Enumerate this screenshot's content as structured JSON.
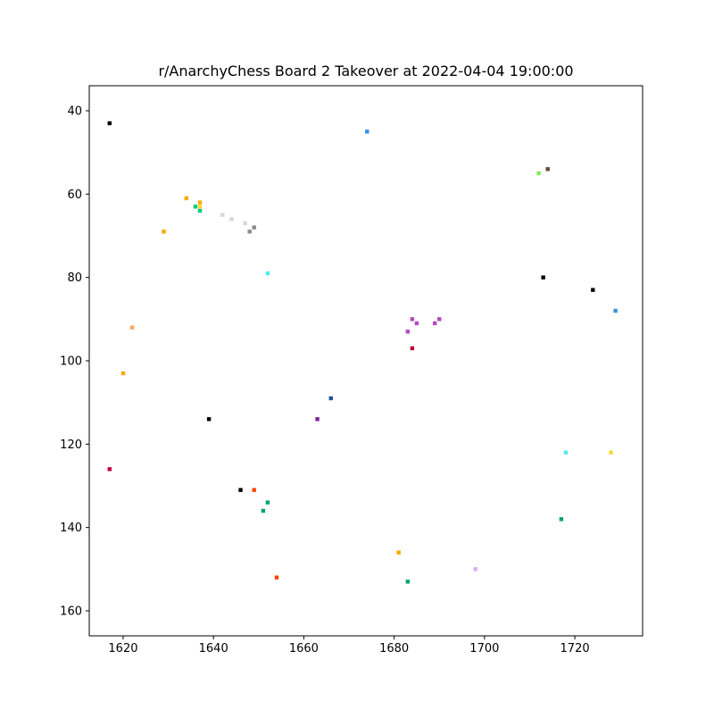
{
  "chart_data": {
    "type": "scatter",
    "title": "r/AnarchyChess Board 2 Takeover at 2022-04-04 19:00:00",
    "xlabel": "",
    "ylabel": "",
    "xlim": [
      1612.5,
      1735
    ],
    "ylim": [
      166,
      34
    ],
    "y_inverted": true,
    "x_ticks": [
      1620,
      1640,
      1660,
      1680,
      1700,
      1720
    ],
    "y_ticks": [
      40,
      60,
      80,
      100,
      120,
      140,
      160
    ],
    "x_tick_labels": [
      "1620",
      "1640",
      "1660",
      "1680",
      "1700",
      "1720"
    ],
    "y_tick_labels": [
      "40",
      "60",
      "80",
      "100",
      "120",
      "140",
      "160"
    ],
    "grid": false,
    "legend": "none",
    "points": [
      {
        "x": 1617,
        "y": 43,
        "color": "#000000"
      },
      {
        "x": 1674,
        "y": 45,
        "color": "#3690ea"
      },
      {
        "x": 1712,
        "y": 55,
        "color": "#7eed56"
      },
      {
        "x": 1714,
        "y": 54,
        "color": "#6d482f"
      },
      {
        "x": 1634,
        "y": 61,
        "color": "#ffa800"
      },
      {
        "x": 1637,
        "y": 62,
        "color": "#ffa800"
      },
      {
        "x": 1636,
        "y": 63,
        "color": "#00cc78"
      },
      {
        "x": 1637,
        "y": 63,
        "color": "#ffd635"
      },
      {
        "x": 1637,
        "y": 64,
        "color": "#00cc78"
      },
      {
        "x": 1642,
        "y": 65,
        "color": "#d4d7d9"
      },
      {
        "x": 1644,
        "y": 66,
        "color": "#d4d7d9"
      },
      {
        "x": 1647,
        "y": 67,
        "color": "#d4d7d9"
      },
      {
        "x": 1649,
        "y": 68,
        "color": "#898d90"
      },
      {
        "x": 1648,
        "y": 69,
        "color": "#898d90"
      },
      {
        "x": 1629,
        "y": 69,
        "color": "#ffa800"
      },
      {
        "x": 1652,
        "y": 79,
        "color": "#51e9f4"
      },
      {
        "x": 1713,
        "y": 80,
        "color": "#000000"
      },
      {
        "x": 1724,
        "y": 83,
        "color": "#000000"
      },
      {
        "x": 1729,
        "y": 88,
        "color": "#3690ea"
      },
      {
        "x": 1622,
        "y": 92,
        "color": "#ffa45c"
      },
      {
        "x": 1684,
        "y": 90,
        "color": "#b44ac0"
      },
      {
        "x": 1685,
        "y": 91,
        "color": "#b44ac0"
      },
      {
        "x": 1690,
        "y": 90,
        "color": "#b44ac0"
      },
      {
        "x": 1689,
        "y": 91,
        "color": "#b44ac0"
      },
      {
        "x": 1683,
        "y": 93,
        "color": "#b44ac0"
      },
      {
        "x": 1684,
        "y": 97,
        "color": "#be0039"
      },
      {
        "x": 1620,
        "y": 103,
        "color": "#ffa800"
      },
      {
        "x": 1666,
        "y": 109,
        "color": "#2450a4"
      },
      {
        "x": 1639,
        "y": 114,
        "color": "#000000"
      },
      {
        "x": 1663,
        "y": 114,
        "color": "#811e9f"
      },
      {
        "x": 1718,
        "y": 122,
        "color": "#51e9f4"
      },
      {
        "x": 1728,
        "y": 122,
        "color": "#ffd635"
      },
      {
        "x": 1617,
        "y": 126,
        "color": "#be0039"
      },
      {
        "x": 1646,
        "y": 131,
        "color": "#000000"
      },
      {
        "x": 1649,
        "y": 131,
        "color": "#ff4500"
      },
      {
        "x": 1652,
        "y": 134,
        "color": "#00a368"
      },
      {
        "x": 1651,
        "y": 136,
        "color": "#00a368"
      },
      {
        "x": 1717,
        "y": 138,
        "color": "#00a368"
      },
      {
        "x": 1681,
        "y": 146,
        "color": "#ffa800"
      },
      {
        "x": 1698,
        "y": 150,
        "color": "#e4abff"
      },
      {
        "x": 1654,
        "y": 152,
        "color": "#ff4500"
      },
      {
        "x": 1683,
        "y": 153,
        "color": "#00a368"
      }
    ]
  }
}
